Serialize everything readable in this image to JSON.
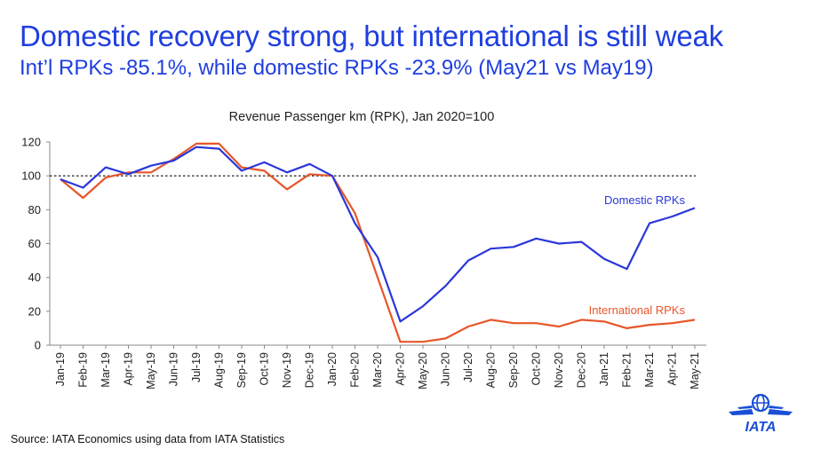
{
  "slide": {
    "headline": "Domestic recovery strong, but international is still weak",
    "subheadline": "Int’l RPKs -85.1%, while domestic RPKs -23.9% (May21 vs May19)",
    "source": "Source: IATA Economics using data from IATA Statistics",
    "logo_text": "IATA"
  },
  "colors": {
    "headline": "#1f3ee0",
    "domestic": "#2a37d9",
    "international": "#e8562a",
    "reference_line": "#333333",
    "logo": "#1a4fd6"
  },
  "chart_data": {
    "type": "line",
    "title": "Revenue Passenger km (RPK), Jan 2020=100",
    "xlabel": "",
    "ylabel": "",
    "ylim": [
      0,
      120
    ],
    "yticks": [
      0,
      20,
      40,
      60,
      80,
      100,
      120
    ],
    "grid": false,
    "reference_line": 100,
    "categories": [
      "Jan-19",
      "Feb-19",
      "Mar-19",
      "Apr-19",
      "May-19",
      "Jun-19",
      "Jul-19",
      "Aug-19",
      "Sep-19",
      "Oct-19",
      "Nov-19",
      "Dec-19",
      "Jan-20",
      "Feb-20",
      "Mar-20",
      "Apr-20",
      "May-20",
      "Jun-20",
      "Jul-20",
      "Aug-20",
      "Sep-20",
      "Oct-20",
      "Nov-20",
      "Dec-20",
      "Jan-21",
      "Feb-21",
      "Mar-21",
      "Apr-21",
      "May-21"
    ],
    "series": [
      {
        "name": "Domestic RPKs",
        "color": "#2a37d9",
        "values": [
          98,
          93,
          105,
          101,
          106,
          109,
          117,
          116,
          103,
          108,
          102,
          107,
          100,
          72,
          52,
          14,
          23,
          35,
          50,
          57,
          58,
          63,
          60,
          61,
          51,
          45,
          72,
          76,
          81
        ]
      },
      {
        "name": "International RPKs",
        "color": "#e8562a",
        "values": [
          98,
          87,
          99,
          102,
          102,
          110,
          119,
          119,
          105,
          103,
          92,
          101,
          100,
          78,
          40,
          2,
          2,
          4,
          11,
          15,
          13,
          13,
          11,
          15,
          14,
          10,
          12,
          13,
          15
        ]
      }
    ]
  }
}
